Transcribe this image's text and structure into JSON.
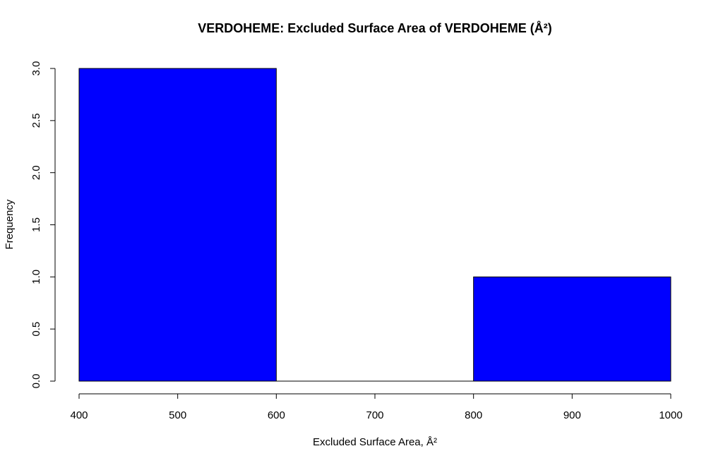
{
  "chart_data": {
    "type": "bar",
    "subtype": "histogram",
    "title": "VERDOHEME: Excluded Surface Area of VERDOHEME (Å²)",
    "xlabel": "Excluded Surface Area, Å²",
    "ylabel": "Frequency",
    "bins": [
      {
        "start": 400,
        "end": 600,
        "count": 3
      },
      {
        "start": 600,
        "end": 800,
        "count": 0
      },
      {
        "start": 800,
        "end": 1000,
        "count": 1
      }
    ],
    "xlim": [
      400,
      1000
    ],
    "ylim": [
      0,
      3
    ],
    "x_ticks": [
      400,
      500,
      600,
      700,
      800,
      900,
      1000
    ],
    "y_ticks": [
      "0.0",
      "0.5",
      "1.0",
      "1.5",
      "2.0",
      "2.5",
      "3.0"
    ],
    "bar_color": "#0000ff",
    "grid": false
  }
}
